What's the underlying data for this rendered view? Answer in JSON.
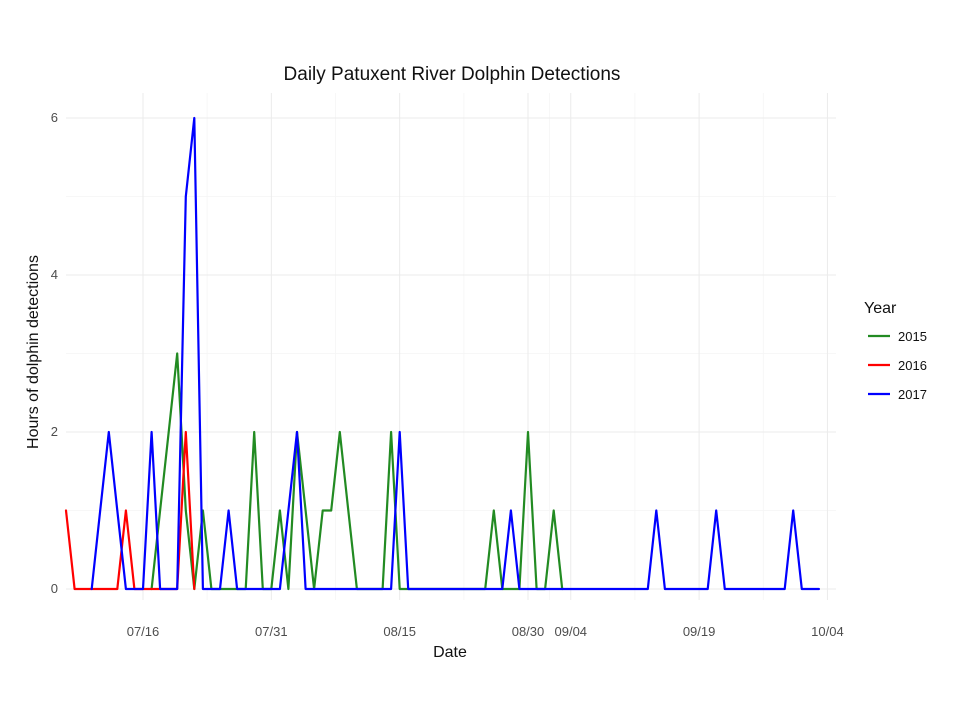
{
  "chart_data": {
    "type": "line",
    "title": "Daily Patuxent River Dolphin Detections",
    "xlabel": "Date",
    "ylabel": "Hours of dolphin detections",
    "x_type": "date",
    "xlim": [
      "07-07",
      "10-05"
    ],
    "ylim": [
      0,
      6
    ],
    "x_ticks": [
      "07-16",
      "07-31",
      "08-15",
      "08-30",
      "09-04",
      "09-19",
      "10-04"
    ],
    "x_tick_labels": [
      "07/16",
      "07/31",
      "08/15",
      "08/30",
      "09/04",
      "09/19",
      "10/04"
    ],
    "y_ticks": [
      0,
      2,
      4,
      6
    ],
    "grid": true,
    "legend_title": "Year",
    "legend_position": "right",
    "series": [
      {
        "name": "2015",
        "color": "#228B22",
        "points": [
          [
            "07-17",
            0
          ],
          [
            "07-18",
            1
          ],
          [
            "07-19",
            2
          ],
          [
            "07-20",
            3
          ],
          [
            "07-21",
            1
          ],
          [
            "07-22",
            0
          ],
          [
            "07-23",
            1
          ],
          [
            "07-24",
            0
          ],
          [
            "07-28",
            0
          ],
          [
            "07-29",
            2
          ],
          [
            "07-30",
            0
          ],
          [
            "07-31",
            0
          ],
          [
            "08-01",
            1
          ],
          [
            "08-02",
            0
          ],
          [
            "08-03",
            2
          ],
          [
            "08-04",
            1
          ],
          [
            "08-05",
            0
          ],
          [
            "08-06",
            1
          ],
          [
            "08-07",
            1
          ],
          [
            "08-08",
            2
          ],
          [
            "08-09",
            1
          ],
          [
            "08-10",
            0
          ],
          [
            "08-13",
            0
          ],
          [
            "08-14",
            2
          ],
          [
            "08-15",
            0
          ],
          [
            "08-25",
            0
          ],
          [
            "08-26",
            1
          ],
          [
            "08-27",
            0
          ],
          [
            "08-29",
            0
          ],
          [
            "08-30",
            2
          ],
          [
            "08-31",
            0
          ],
          [
            "09-01",
            0
          ],
          [
            "09-02",
            1
          ],
          [
            "09-03",
            0
          ]
        ]
      },
      {
        "name": "2016",
        "color": "#FF0000",
        "points": [
          [
            "07-07",
            1
          ],
          [
            "07-08",
            0
          ],
          [
            "07-13",
            0
          ],
          [
            "07-14",
            1
          ],
          [
            "07-15",
            0
          ],
          [
            "07-20",
            0
          ],
          [
            "07-21",
            2
          ],
          [
            "07-22",
            0
          ]
        ]
      },
      {
        "name": "2017",
        "color": "#0000FF",
        "points": [
          [
            "07-10",
            0
          ],
          [
            "07-11",
            1
          ],
          [
            "07-12",
            2
          ],
          [
            "07-13",
            1
          ],
          [
            "07-14",
            0
          ],
          [
            "07-16",
            0
          ],
          [
            "07-17",
            2
          ],
          [
            "07-18",
            0
          ],
          [
            "07-20",
            0
          ],
          [
            "07-21",
            5
          ],
          [
            "07-22",
            6
          ],
          [
            "07-23",
            0
          ],
          [
            "07-25",
            0
          ],
          [
            "07-26",
            1
          ],
          [
            "07-27",
            0
          ],
          [
            "08-01",
            0
          ],
          [
            "08-02",
            1
          ],
          [
            "08-03",
            2
          ],
          [
            "08-04",
            0
          ],
          [
            "08-14",
            0
          ],
          [
            "08-15",
            2
          ],
          [
            "08-16",
            0
          ],
          [
            "08-27",
            0
          ],
          [
            "08-28",
            1
          ],
          [
            "08-29",
            0
          ],
          [
            "09-13",
            0
          ],
          [
            "09-14",
            1
          ],
          [
            "09-15",
            0
          ],
          [
            "09-20",
            0
          ],
          [
            "09-21",
            1
          ],
          [
            "09-22",
            0
          ],
          [
            "09-29",
            0
          ],
          [
            "09-30",
            1
          ],
          [
            "10-01",
            0
          ],
          [
            "10-03",
            0
          ]
        ]
      }
    ]
  }
}
